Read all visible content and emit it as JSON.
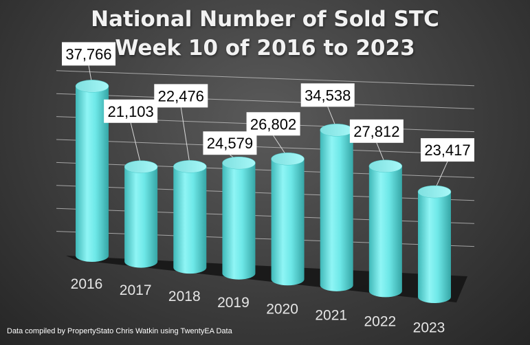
{
  "chart_data": {
    "type": "bar",
    "title_line1": "National Number of  Sold STC",
    "title_line2": "Week 10 of 2016 to 2023",
    "categories": [
      "2016",
      "2017",
      "2018",
      "2019",
      "2020",
      "2021",
      "2022",
      "2023"
    ],
    "values": [
      37766,
      21103,
      22476,
      24579,
      26802,
      34538,
      27812,
      23417
    ],
    "value_labels": [
      "37,766",
      "21,103",
      "22,476",
      "24,579",
      "26,802",
      "34,538",
      "27,812",
      "23,417"
    ],
    "legend": "none",
    "grid": true,
    "bar_color": "#6ee8e8"
  },
  "footnote": "Data compiled by PropertyStato Chris Watkin using TwentyEA Data"
}
